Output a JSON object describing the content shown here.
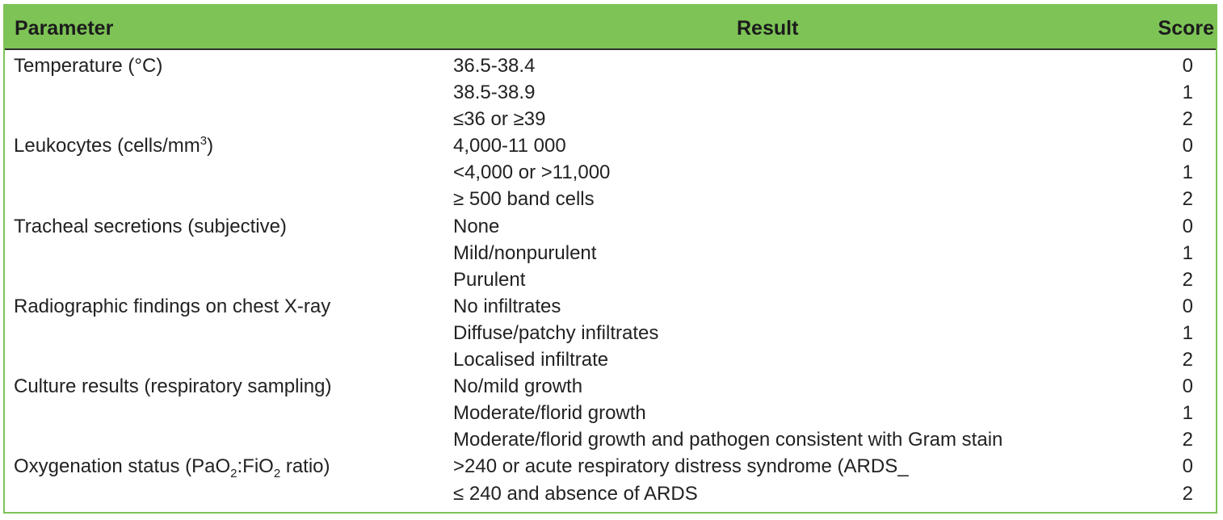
{
  "table": {
    "headers": {
      "parameter": "Parameter",
      "result": "Result",
      "score": "Score"
    },
    "rows": [
      {
        "parameter": "Temperature (°C)",
        "result": "36.5-38.4",
        "score": "0"
      },
      {
        "parameter": "",
        "result": "38.5-38.9",
        "score": "1"
      },
      {
        "parameter": "",
        "result": "≤36 or ≥39",
        "score": "2"
      },
      {
        "parameter": "Leukocytes (cells/mm",
        "parameter_sup": "3",
        "parameter_after": ")",
        "result": "4,000-11 000",
        "score": "0"
      },
      {
        "parameter": "",
        "result": "<4,000 or >11,000",
        "score": "1"
      },
      {
        "parameter": "",
        "result": "≥ 500 band cells",
        "score": "2"
      },
      {
        "parameter": "Tracheal secretions (subjective)",
        "result": "None",
        "score": "0"
      },
      {
        "parameter": "",
        "result": "Mild/nonpurulent",
        "score": "1"
      },
      {
        "parameter": "",
        "result": "Purulent",
        "score": "2"
      },
      {
        "parameter": "Radiographic findings on chest X-ray",
        "result": "No infiltrates",
        "score": "0"
      },
      {
        "parameter": "",
        "result": "Diffuse/patchy infiltrates",
        "score": "1"
      },
      {
        "parameter": "",
        "result": "Localised infiltrate",
        "score": "2"
      },
      {
        "parameter": "Culture results (respiratory sampling)",
        "result": "No/mild growth",
        "score": "0"
      },
      {
        "parameter": "",
        "result": "Moderate/florid growth",
        "score": "1"
      },
      {
        "parameter": "",
        "result": "Moderate/florid growth and pathogen consistent with Gram stain",
        "score": "2"
      },
      {
        "parameter": "Oxygenation status (PaO",
        "parameter_sub1": "2",
        "parameter_mid": ":FiO",
        "parameter_sub2": "2",
        "parameter_after": " ratio)",
        "result": ">240 or acute respiratory distress syndrome (ARDS_",
        "score": "0"
      },
      {
        "parameter": "",
        "result": "≤ 240 and absence of ARDS",
        "score": "2"
      }
    ]
  },
  "colors": {
    "header_bg": "#7dc356",
    "border": "#7dc356",
    "header_rule": "#2f2f2f",
    "text": "#222222"
  }
}
